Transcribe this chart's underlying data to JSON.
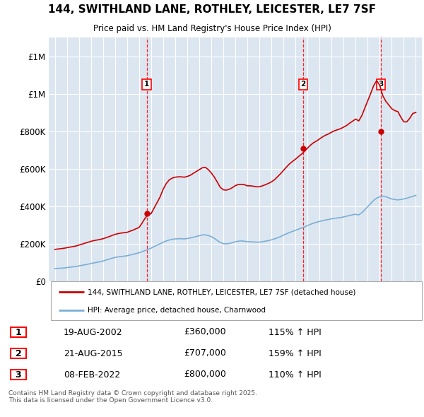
{
  "title_line1": "144, SWITHLAND LANE, ROTHLEY, LEICESTER, LE7 7SF",
  "title_line2": "Price paid vs. HM Land Registry's House Price Index (HPI)",
  "hpi_label": "HPI: Average price, detached house, Charnwood",
  "property_label": "144, SWITHLAND LANE, ROTHLEY, LEICESTER, LE7 7SF (detached house)",
  "ytick_values": [
    0,
    200000,
    400000,
    600000,
    800000,
    1000000,
    1200000
  ],
  "ylim": [
    0,
    1300000
  ],
  "sale_prices": [
    360000,
    707000,
    800000
  ],
  "sale_labels": [
    "1",
    "2",
    "3"
  ],
  "sale_hpi_pct": [
    "115% ↑ HPI",
    "159% ↑ HPI",
    "110% ↑ HPI"
  ],
  "sale_date_labels": [
    "19-AUG-2002",
    "21-AUG-2015",
    "08-FEB-2022"
  ],
  "sale_price_labels": [
    "£360,000",
    "£707,000",
    "£800,000"
  ],
  "sale_year_floats": [
    2002.636,
    2015.636,
    2022.097
  ],
  "property_color": "#cc0000",
  "hpi_color": "#7bafd4",
  "plot_bg_color": "#dce6f1",
  "footer_text": "Contains HM Land Registry data © Crown copyright and database right 2025.\nThis data is licensed under the Open Government Licence v3.0.",
  "xstart": 1995,
  "xend": 2025,
  "hpi_data_years": [
    1995.0,
    1995.25,
    1995.5,
    1995.75,
    1996.0,
    1996.25,
    1996.5,
    1996.75,
    1997.0,
    1997.25,
    1997.5,
    1997.75,
    1998.0,
    1998.25,
    1998.5,
    1998.75,
    1999.0,
    1999.25,
    1999.5,
    1999.75,
    2000.0,
    2000.25,
    2000.5,
    2000.75,
    2001.0,
    2001.25,
    2001.5,
    2001.75,
    2002.0,
    2002.25,
    2002.5,
    2002.75,
    2003.0,
    2003.25,
    2003.5,
    2003.75,
    2004.0,
    2004.25,
    2004.5,
    2004.75,
    2005.0,
    2005.25,
    2005.5,
    2005.75,
    2006.0,
    2006.25,
    2006.5,
    2006.75,
    2007.0,
    2007.25,
    2007.5,
    2007.75,
    2008.0,
    2008.25,
    2008.5,
    2008.75,
    2009.0,
    2009.25,
    2009.5,
    2009.75,
    2010.0,
    2010.25,
    2010.5,
    2010.75,
    2011.0,
    2011.25,
    2011.5,
    2011.75,
    2012.0,
    2012.25,
    2012.5,
    2012.75,
    2013.0,
    2013.25,
    2013.5,
    2013.75,
    2014.0,
    2014.25,
    2014.5,
    2014.75,
    2015.0,
    2015.25,
    2015.5,
    2015.75,
    2016.0,
    2016.25,
    2016.5,
    2016.75,
    2017.0,
    2017.25,
    2017.5,
    2017.75,
    2018.0,
    2018.25,
    2018.5,
    2018.75,
    2019.0,
    2019.25,
    2019.5,
    2019.75,
    2020.0,
    2020.25,
    2020.5,
    2020.75,
    2021.0,
    2021.25,
    2021.5,
    2021.75,
    2022.0,
    2022.25,
    2022.5,
    2022.75,
    2023.0,
    2023.25,
    2023.5,
    2023.75,
    2024.0,
    2024.25,
    2024.5,
    2024.75,
    2025.0
  ],
  "hpi_data_vals": [
    68000,
    69000,
    70000,
    71000,
    73000,
    75000,
    77000,
    79000,
    82000,
    85000,
    88000,
    91000,
    95000,
    98000,
    101000,
    104000,
    108000,
    113000,
    118000,
    123000,
    127000,
    130000,
    132000,
    134000,
    136000,
    140000,
    144000,
    148000,
    152000,
    158000,
    164000,
    170000,
    177000,
    185000,
    193000,
    200000,
    208000,
    215000,
    220000,
    224000,
    226000,
    227000,
    227000,
    226000,
    228000,
    231000,
    235000,
    239000,
    243000,
    247000,
    248000,
    244000,
    238000,
    229000,
    218000,
    207000,
    201000,
    200000,
    202000,
    206000,
    211000,
    214000,
    215000,
    214000,
    211000,
    211000,
    210000,
    209000,
    209000,
    211000,
    214000,
    217000,
    221000,
    226000,
    232000,
    238000,
    246000,
    253000,
    260000,
    266000,
    272000,
    278000,
    284000,
    290000,
    297000,
    304000,
    310000,
    315000,
    319000,
    323000,
    327000,
    330000,
    333000,
    336000,
    338000,
    340000,
    343000,
    347000,
    351000,
    355000,
    357000,
    354000,
    365000,
    381000,
    398000,
    415000,
    432000,
    444000,
    450000,
    454000,
    451000,
    445000,
    439000,
    436000,
    434000,
    436000,
    439000,
    443000,
    448000,
    453000,
    458000
  ],
  "prop_data_years": [
    1995.0,
    1995.25,
    1995.5,
    1995.75,
    1996.0,
    1996.25,
    1996.5,
    1996.75,
    1997.0,
    1997.25,
    1997.5,
    1997.75,
    1998.0,
    1998.25,
    1998.5,
    1998.75,
    1999.0,
    1999.25,
    1999.5,
    1999.75,
    2000.0,
    2000.25,
    2000.5,
    2000.75,
    2001.0,
    2001.25,
    2001.5,
    2001.75,
    2002.0,
    2002.25,
    2002.5,
    2002.75,
    2003.0,
    2003.25,
    2003.5,
    2003.75,
    2004.0,
    2004.25,
    2004.5,
    2004.75,
    2005.0,
    2005.25,
    2005.5,
    2005.75,
    2006.0,
    2006.25,
    2006.5,
    2006.75,
    2007.0,
    2007.25,
    2007.5,
    2007.75,
    2008.0,
    2008.25,
    2008.5,
    2008.75,
    2009.0,
    2009.25,
    2009.5,
    2009.75,
    2010.0,
    2010.25,
    2010.5,
    2010.75,
    2011.0,
    2011.25,
    2011.5,
    2011.75,
    2012.0,
    2012.25,
    2012.5,
    2012.75,
    2013.0,
    2013.25,
    2013.5,
    2013.75,
    2014.0,
    2014.25,
    2014.5,
    2014.75,
    2015.0,
    2015.25,
    2015.5,
    2015.75,
    2016.0,
    2016.25,
    2016.5,
    2016.75,
    2017.0,
    2017.25,
    2017.5,
    2017.75,
    2018.0,
    2018.25,
    2018.5,
    2018.75,
    2019.0,
    2019.25,
    2019.5,
    2019.75,
    2020.0,
    2020.25,
    2020.5,
    2020.75,
    2021.0,
    2021.25,
    2021.5,
    2021.75,
    2022.0,
    2022.25,
    2022.5,
    2022.75,
    2023.0,
    2023.25,
    2023.5,
    2023.75,
    2024.0,
    2024.25,
    2024.5,
    2024.75,
    2025.0
  ],
  "prop_data_vals": [
    170000,
    172000,
    174000,
    176000,
    179000,
    182000,
    185000,
    188000,
    193000,
    198000,
    203000,
    208000,
    213000,
    217000,
    220000,
    223000,
    227000,
    232000,
    238000,
    244000,
    250000,
    254000,
    257000,
    259000,
    261000,
    267000,
    273000,
    280000,
    287000,
    310000,
    336000,
    357000,
    360000,
    390000,
    420000,
    450000,
    490000,
    520000,
    540000,
    550000,
    555000,
    557000,
    557000,
    555000,
    559000,
    565000,
    575000,
    585000,
    595000,
    605000,
    608000,
    596000,
    578000,
    556000,
    529000,
    501000,
    488000,
    486000,
    491000,
    499000,
    510000,
    516000,
    517000,
    515000,
    509000,
    509000,
    507000,
    504000,
    504000,
    509000,
    515000,
    522000,
    530000,
    541000,
    557000,
    573000,
    591000,
    609000,
    626000,
    639000,
    651000,
    665000,
    678000,
    693000,
    710000,
    726000,
    739000,
    748000,
    759000,
    770000,
    779000,
    786000,
    795000,
    803000,
    808000,
    814000,
    822000,
    831000,
    843000,
    854000,
    865000,
    855000,
    882000,
    922000,
    962000,
    1002000,
    1044000,
    1070000,
    1045000,
    990000,
    960000,
    940000,
    920000,
    910000,
    905000,
    875000,
    850000,
    850000,
    870000,
    895000,
    900000
  ]
}
